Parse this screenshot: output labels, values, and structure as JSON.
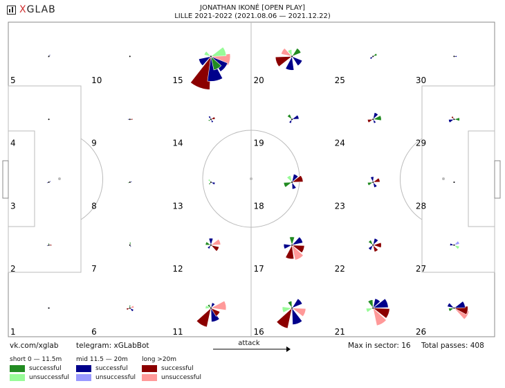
{
  "logo": {
    "prefix": "X",
    "rest": "GLAB"
  },
  "chart_data": {
    "type": "rose",
    "title_line1": "JONATHAN IKONÉ [OPEN PLAY]",
    "title_line2": "LILLE 2021-2022 (2021.08.06 — 2021.12.22)",
    "max_in_sector": 16,
    "total_passes": 408,
    "sector_labels": [
      "1",
      "2",
      "3",
      "4",
      "5",
      "6",
      "7",
      "8",
      "9",
      "10",
      "11",
      "12",
      "13",
      "14",
      "15",
      "16",
      "17",
      "18",
      "19",
      "20",
      "21",
      "22",
      "23",
      "24",
      "25",
      "26",
      "27",
      "28",
      "29",
      "30"
    ],
    "zones": [
      {
        "zone": 1,
        "petals": [
          {
            "angle": 0,
            "len": 2,
            "color": "#00008b"
          },
          {
            "angle": 180,
            "len": 2,
            "color": "#00008b"
          }
        ]
      },
      {
        "zone": 2,
        "petals": [
          {
            "angle": 0,
            "len": 4,
            "color": "#8b0000"
          },
          {
            "angle": 90,
            "len": 3,
            "color": "#228b22"
          },
          {
            "angle": 200,
            "len": 3,
            "color": "#00008b"
          }
        ]
      },
      {
        "zone": 3,
        "petals": [
          {
            "angle": 30,
            "len": 3,
            "color": "#00008b"
          },
          {
            "angle": 200,
            "len": 3,
            "color": "#00008b"
          }
        ]
      },
      {
        "zone": 4,
        "petals": []
      },
      {
        "zone": 5,
        "petals": [
          {
            "angle": 50,
            "len": 3,
            "color": "#00008b"
          },
          {
            "angle": 240,
            "len": 2,
            "color": "#00008b"
          }
        ]
      },
      {
        "zone": 6,
        "petals": [
          {
            "angle": 20,
            "len": 6,
            "color": "#ff9999"
          },
          {
            "angle": 320,
            "len": 6,
            "color": "#00008b"
          },
          {
            "angle": 200,
            "len": 5,
            "color": "#8b0000"
          },
          {
            "angle": 90,
            "len": 4,
            "color": "#228b22"
          }
        ]
      },
      {
        "zone": 7,
        "petals": [
          {
            "angle": 80,
            "len": 4,
            "color": "#228b22"
          },
          {
            "angle": 300,
            "len": 3,
            "color": "#00008b"
          }
        ]
      },
      {
        "zone": 8,
        "petals": [
          {
            "angle": 20,
            "len": 3,
            "color": "#00008b"
          },
          {
            "angle": 200,
            "len": 3,
            "color": "#228b22"
          }
        ]
      },
      {
        "zone": 9,
        "petals": [
          {
            "angle": 0,
            "len": 4,
            "color": "#8b0000"
          },
          {
            "angle": 180,
            "len": 3,
            "color": "#00008b"
          }
        ]
      },
      {
        "zone": 10,
        "petals": []
      },
      {
        "zone": 11,
        "petals": [
          {
            "angle": 240,
            "len": 28,
            "color": "#8b0000"
          },
          {
            "angle": 290,
            "len": 20,
            "color": "#00008b"
          },
          {
            "angle": 10,
            "len": 22,
            "color": "#ff9999"
          },
          {
            "angle": 320,
            "len": 14,
            "color": "#8b0000"
          },
          {
            "angle": 60,
            "len": 8,
            "color": "#00008b"
          },
          {
            "angle": 130,
            "len": 6,
            "color": "#228b22"
          },
          {
            "angle": 170,
            "len": 8,
            "color": "#98fb98"
          }
        ]
      },
      {
        "zone": 12,
        "petals": [
          {
            "angle": 20,
            "len": 14,
            "color": "#ff9999"
          },
          {
            "angle": 330,
            "len": 12,
            "color": "#8b0000"
          },
          {
            "angle": 90,
            "len": 10,
            "color": "#00008b"
          },
          {
            "angle": 160,
            "len": 8,
            "color": "#228b22"
          },
          {
            "angle": 230,
            "len": 6,
            "color": "#00008b"
          }
        ]
      },
      {
        "zone": 13,
        "petals": [
          {
            "angle": 340,
            "len": 6,
            "color": "#00008b"
          },
          {
            "angle": 130,
            "len": 5,
            "color": "#98fb98"
          },
          {
            "angle": 230,
            "len": 4,
            "color": "#228b22"
          }
        ]
      },
      {
        "zone": 14,
        "petals": [
          {
            "angle": 20,
            "len": 6,
            "color": "#8b0000"
          },
          {
            "angle": 120,
            "len": 5,
            "color": "#00008b"
          },
          {
            "angle": 210,
            "len": 4,
            "color": "#228b22"
          },
          {
            "angle": 300,
            "len": 5,
            "color": "#00008b"
          }
        ]
      },
      {
        "zone": 15,
        "petals": [
          {
            "angle": 250,
            "len": 48,
            "color": "#8b0000"
          },
          {
            "angle": 280,
            "len": 36,
            "color": "#00008b"
          },
          {
            "angle": 320,
            "len": 26,
            "color": "#00008b"
          },
          {
            "angle": 350,
            "len": 28,
            "color": "#ff9999"
          },
          {
            "angle": 20,
            "len": 22,
            "color": "#98fb98"
          },
          {
            "angle": 300,
            "len": 20,
            "color": "#228b22"
          },
          {
            "angle": 150,
            "len": 10,
            "color": "#98fb98"
          },
          {
            "angle": 210,
            "len": 18,
            "color": "#00008b"
          }
        ]
      },
      {
        "zone": 16,
        "petals": [
          {
            "angle": 240,
            "len": 30,
            "color": "#8b0000"
          },
          {
            "angle": 290,
            "len": 24,
            "color": "#00008b"
          },
          {
            "angle": 340,
            "len": 20,
            "color": "#ff9999"
          },
          {
            "angle": 40,
            "len": 16,
            "color": "#00008b"
          },
          {
            "angle": 110,
            "len": 10,
            "color": "#228b22"
          },
          {
            "angle": 190,
            "len": 14,
            "color": "#98fb98"
          }
        ]
      },
      {
        "zone": 17,
        "petals": [
          {
            "angle": 300,
            "len": 22,
            "color": "#ff9999"
          },
          {
            "angle": 260,
            "len": 20,
            "color": "#8b0000"
          },
          {
            "angle": 340,
            "len": 18,
            "color": "#8b0000"
          },
          {
            "angle": 30,
            "len": 16,
            "color": "#00008b"
          },
          {
            "angle": 90,
            "len": 12,
            "color": "#228b22"
          },
          {
            "angle": 190,
            "len": 12,
            "color": "#00008b"
          }
        ]
      },
      {
        "zone": 18,
        "petals": [
          {
            "angle": 20,
            "len": 16,
            "color": "#8b0000"
          },
          {
            "angle": 60,
            "len": 12,
            "color": "#00008b"
          },
          {
            "angle": 120,
            "len": 10,
            "color": "#98fb98"
          },
          {
            "angle": 200,
            "len": 12,
            "color": "#228b22"
          },
          {
            "angle": 290,
            "len": 10,
            "color": "#00008b"
          }
        ]
      },
      {
        "zone": 19,
        "petals": [
          {
            "angle": 20,
            "len": 10,
            "color": "#00008b"
          },
          {
            "angle": 130,
            "len": 8,
            "color": "#228b22"
          },
          {
            "angle": 240,
            "len": 6,
            "color": "#00008b"
          }
        ]
      },
      {
        "zone": 20,
        "petals": [
          {
            "angle": 200,
            "len": 24,
            "color": "#8b0000"
          },
          {
            "angle": 260,
            "len": 20,
            "color": "#00008b"
          },
          {
            "angle": 320,
            "len": 16,
            "color": "#00008b"
          },
          {
            "angle": 40,
            "len": 14,
            "color": "#228b22"
          },
          {
            "angle": 110,
            "len": 10,
            "color": "#98fb98"
          },
          {
            "angle": 150,
            "len": 16,
            "color": "#ff9999"
          }
        ]
      },
      {
        "zone": 21,
        "petals": [
          {
            "angle": 300,
            "len": 26,
            "color": "#ff9999"
          },
          {
            "angle": 340,
            "len": 24,
            "color": "#8b0000"
          },
          {
            "angle": 20,
            "len": 22,
            "color": "#00008b"
          },
          {
            "angle": 60,
            "len": 14,
            "color": "#00008b"
          },
          {
            "angle": 110,
            "len": 12,
            "color": "#228b22"
          },
          {
            "angle": 200,
            "len": 10,
            "color": "#98fb98"
          }
        ]
      },
      {
        "zone": 22,
        "petals": [
          {
            "angle": 0,
            "len": 12,
            "color": "#8b0000"
          },
          {
            "angle": 60,
            "len": 10,
            "color": "#00008b"
          },
          {
            "angle": 130,
            "len": 8,
            "color": "#228b22"
          },
          {
            "angle": 230,
            "len": 8,
            "color": "#00008b"
          },
          {
            "angle": 300,
            "len": 10,
            "color": "#8b0000"
          }
        ]
      },
      {
        "zone": 23,
        "petals": [
          {
            "angle": 20,
            "len": 10,
            "color": "#8b0000"
          },
          {
            "angle": 100,
            "len": 8,
            "color": "#00008b"
          },
          {
            "angle": 200,
            "len": 8,
            "color": "#228b22"
          },
          {
            "angle": 300,
            "len": 8,
            "color": "#00008b"
          }
        ]
      },
      {
        "zone": 24,
        "petals": [
          {
            "angle": 10,
            "len": 12,
            "color": "#228b22"
          },
          {
            "angle": 60,
            "len": 10,
            "color": "#00008b"
          },
          {
            "angle": 200,
            "len": 8,
            "color": "#8b0000"
          },
          {
            "angle": 300,
            "len": 6,
            "color": "#00008b"
          }
        ]
      },
      {
        "zone": 25,
        "petals": [
          {
            "angle": 30,
            "len": 6,
            "color": "#228b22"
          },
          {
            "angle": 220,
            "len": 5,
            "color": "#00008b"
          }
        ]
      },
      {
        "zone": 26,
        "petals": [
          {
            "angle": 330,
            "len": 22,
            "color": "#ff9999"
          },
          {
            "angle": 350,
            "len": 20,
            "color": "#8b0000"
          },
          {
            "angle": 20,
            "len": 16,
            "color": "#00008b"
          },
          {
            "angle": 150,
            "len": 10,
            "color": "#00008b"
          },
          {
            "angle": 200,
            "len": 8,
            "color": "#228b22"
          }
        ]
      },
      {
        "zone": 27,
        "petals": [
          {
            "angle": 330,
            "len": 8,
            "color": "#98fb98"
          },
          {
            "angle": 30,
            "len": 8,
            "color": "#9999ff"
          },
          {
            "angle": 170,
            "len": 6,
            "color": "#00008b"
          }
        ]
      },
      {
        "zone": 28,
        "petals": [
          {
            "angle": 0,
            "len": 2,
            "color": "#00008b"
          }
        ]
      },
      {
        "zone": 29,
        "petals": [
          {
            "angle": 0,
            "len": 8,
            "color": "#228b22"
          },
          {
            "angle": 200,
            "len": 8,
            "color": "#00008b"
          },
          {
            "angle": 130,
            "len": 5,
            "color": "#8b0000"
          }
        ]
      },
      {
        "zone": 30,
        "petals": [
          {
            "angle": 0,
            "len": 4,
            "color": "#00008b"
          }
        ]
      }
    ]
  },
  "footer": {
    "vk": "vk.com/xglab",
    "telegram": "telegram: xGLabBot",
    "attack": "attack",
    "max_label": "Max in sector: 16",
    "total_label": "Total passes: 408"
  },
  "legend": {
    "short_head": "short 0 — 11.5m",
    "mid_head": "mid 11.5 — 20m",
    "long_head": "long >20m",
    "successful": "successful",
    "unsuccessful": "unsuccessful",
    "colors": {
      "short_succ": "#228b22",
      "short_unsucc": "#98fb98",
      "mid_succ": "#00008b",
      "mid_unsucc": "#9999ff",
      "long_succ": "#8b0000",
      "long_unsucc": "#ff9999"
    }
  }
}
